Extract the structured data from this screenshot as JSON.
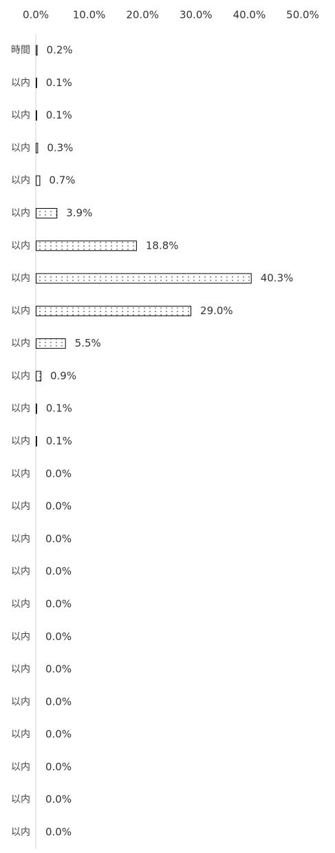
{
  "chart_data": {
    "type": "bar",
    "orientation": "horizontal",
    "categories": [
      "時間",
      "以内",
      "以内",
      "以内",
      "以内",
      "以内",
      "以内",
      "以内",
      "以内",
      "以内",
      "以内",
      "以内",
      "以内",
      "以内",
      "以内",
      "以内",
      "以内",
      "以内",
      "以内",
      "以内",
      "以内",
      "以内",
      "以内",
      "以内",
      "以内"
    ],
    "values": [
      0.2,
      0.1,
      0.1,
      0.3,
      0.7,
      3.9,
      18.8,
      40.3,
      29.0,
      5.5,
      0.9,
      0.1,
      0.1,
      0.0,
      0.0,
      0.0,
      0.0,
      0.0,
      0.0,
      0.0,
      0.0,
      0.0,
      0.0,
      0.0,
      0.0
    ],
    "value_labels": [
      "0.2%",
      "0.1%",
      "0.1%",
      "0.3%",
      "0.7%",
      "3.9%",
      "18.8%",
      "40.3%",
      "29.0%",
      "5.5%",
      "0.9%",
      "0.1%",
      "0.1%",
      "0.0%",
      "0.0%",
      "0.0%",
      "0.0%",
      "0.0%",
      "0.0%",
      "0.0%",
      "0.0%",
      "0.0%",
      "0.0%",
      "0.0%",
      "0.0%"
    ],
    "color": "#000000",
    "xlim": [
      0,
      50
    ],
    "xticks": [
      {
        "value": 0,
        "label": "0.0%"
      },
      {
        "value": 10,
        "label": "10.0%"
      },
      {
        "value": 20,
        "label": "20.0%"
      },
      {
        "value": 30,
        "label": "30.0%"
      },
      {
        "value": 40,
        "label": "40.0%"
      },
      {
        "value": 50,
        "label": "50.0%"
      }
    ]
  }
}
